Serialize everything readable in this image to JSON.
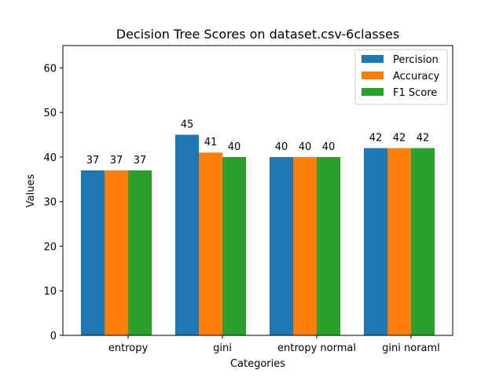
{
  "chart_data": {
    "type": "bar",
    "title": "Decision Tree Scores on dataset.csv-6classes",
    "xlabel": "Categories",
    "ylabel": "Values",
    "categories": [
      "entropy",
      "gini",
      "entropy normal",
      "gini noraml"
    ],
    "series": [
      {
        "name": "Percision",
        "color": "#1f77b4",
        "values": [
          37,
          45,
          40,
          42
        ]
      },
      {
        "name": "Accuracy",
        "color": "#ff7f0e",
        "values": [
          37,
          41,
          40,
          42
        ]
      },
      {
        "name": "F1 Score",
        "color": "#2ca02c",
        "values": [
          37,
          40,
          40,
          42
        ]
      }
    ],
    "ylim": [
      0,
      65
    ],
    "yticks": [
      0,
      10,
      20,
      30,
      40,
      50,
      60
    ],
    "grid": false,
    "legend_position": "top-right"
  }
}
